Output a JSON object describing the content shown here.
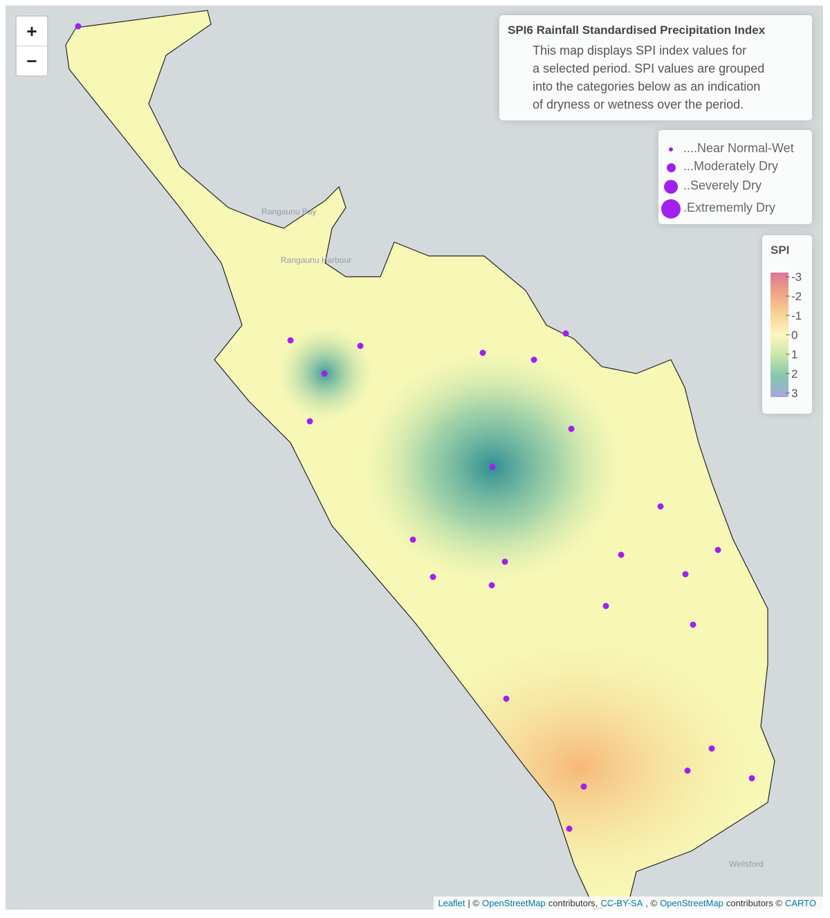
{
  "zoom": {
    "in": "+",
    "out": "−"
  },
  "info": {
    "title": "SPI6 Rainfall Standardised Precipitation Index",
    "lines": [
      "This map displays SPI index values for",
      "a selected period. SPI values are grouped",
      "into the categories below as an indication",
      "of dryness or wetness over the period."
    ]
  },
  "size_legend": [
    "....Near Normal-Wet",
    "...Moderately Dry",
    "..Severely Dry",
    ".Extrememly Dry"
  ],
  "spi_legend": {
    "title": "SPI",
    "ticks": [
      -3,
      -2,
      -1,
      0,
      1,
      2,
      3
    ]
  },
  "place_labels": [
    "Rangaunu Bay",
    "Rangaunu Harbour",
    "Wellsford"
  ],
  "attribution": [
    {
      "text": "Leaflet",
      "link": true
    },
    {
      "text": "| ©",
      "link": false
    },
    {
      "text": "OpenStreetMap",
      "link": true
    },
    {
      "text": "contributors,",
      "link": false
    },
    {
      "text": "CC-BY-SA",
      "link": true
    },
    {
      "text": ", ©",
      "link": false
    },
    {
      "text": "OpenStreetMap",
      "link": true
    },
    {
      "text": "contributors ©",
      "link": false
    },
    {
      "text": "CARTO",
      "link": true
    }
  ]
}
